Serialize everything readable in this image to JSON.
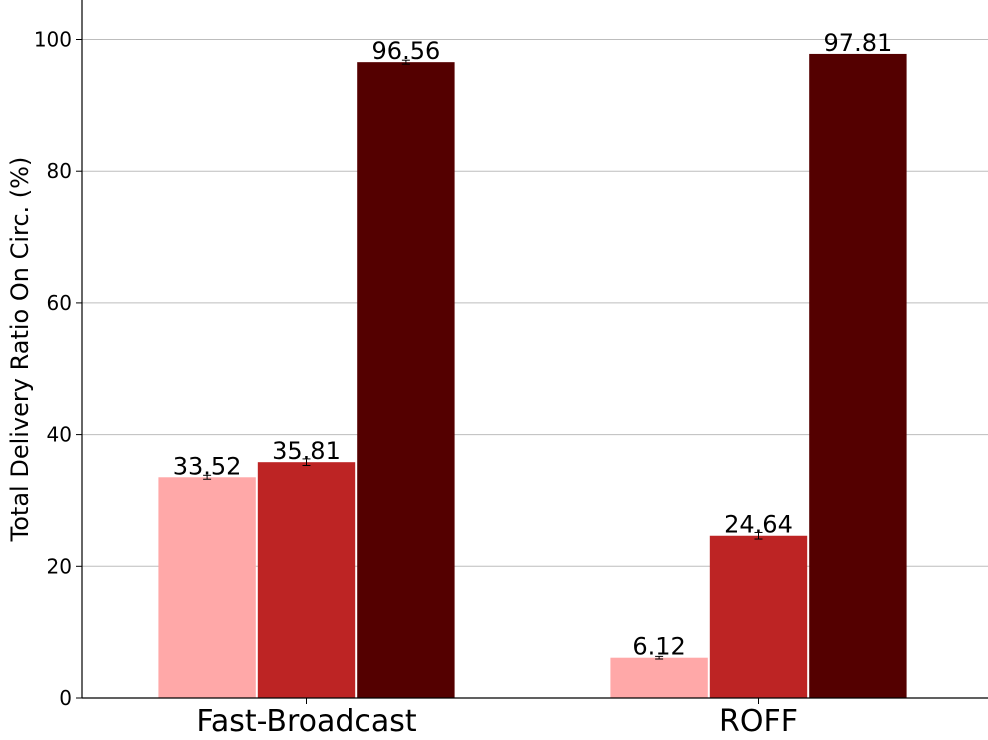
{
  "chart_data": {
    "type": "bar",
    "title": "",
    "xlabel": "",
    "ylabel": "Total Delivery Ratio On Circ. (%)",
    "categories": [
      "Fast-Broadcast",
      "ROFF"
    ],
    "series": [
      {
        "values": [
          33.52,
          6.12
        ],
        "color": "#FFA8A8",
        "errors": [
          0.3,
          0.2
        ]
      },
      {
        "values": [
          35.81,
          24.64
        ],
        "color": "#BD2424",
        "errors": [
          0.5,
          0.5
        ]
      },
      {
        "values": [
          96.56,
          97.81
        ],
        "color": "#540000",
        "errors": [
          0.3,
          0.0
        ]
      }
    ],
    "ylim": [
      0,
      106
    ],
    "yticks": [
      0,
      20,
      40,
      60,
      80,
      100
    ],
    "grid": "horizontal",
    "legend": "none"
  }
}
